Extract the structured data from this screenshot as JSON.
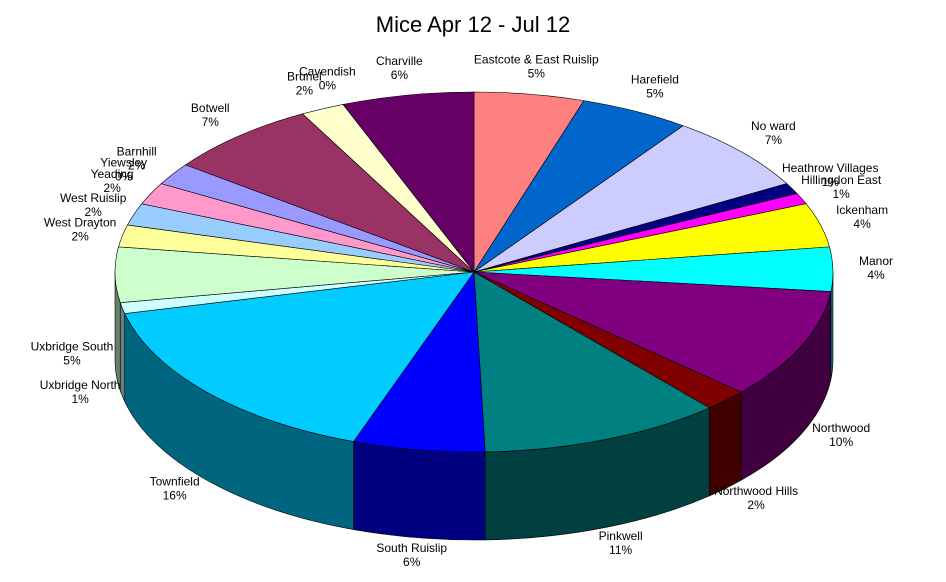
{
  "chart_data": {
    "type": "pie3d",
    "title": "Mice Apr 12 - Jul 12",
    "categories": [
      "Eastcote & East Ruislip",
      "Harefield",
      "No ward",
      "Heathrow Villages",
      "Hillingdon East",
      "Ickenham",
      "Manor",
      "Northwood",
      "Northwood Hills",
      "Pinkwell",
      "South Ruislip",
      "Townfield",
      "Uxbridge North",
      "Uxbridge South",
      "West Drayton",
      "West Ruislip",
      "Yeading",
      "Yiewsley",
      "Barnhill",
      "Botwell",
      "Brunel",
      "Cavendish",
      "Charville"
    ],
    "values": [
      5,
      5,
      7,
      1,
      1,
      4,
      4,
      10,
      2,
      11,
      6,
      16,
      1,
      5,
      2,
      2,
      2,
      0,
      2,
      7,
      2,
      0,
      6
    ],
    "value_labels": [
      "5%",
      "5%",
      "7%",
      "1%",
      "1%",
      "4%",
      "4%",
      "10%",
      "2%",
      "11%",
      "6%",
      "16%",
      "1%",
      "5%",
      "2%",
      "2%",
      "2%",
      "0%",
      "2%",
      "7%",
      "2%",
      "0%",
      "6%"
    ],
    "colors": [
      "#ff8080",
      "#0066cc",
      "#ccccff",
      "#000080",
      "#ff00ff",
      "#ffff00",
      "#00ffff",
      "#800080",
      "#800000",
      "#008080",
      "#0000ff",
      "#00ccff",
      "#ccffff",
      "#ccffcc",
      "#ffff99",
      "#99ccff",
      "#ff99cc",
      "#cc99ff",
      "#9999ff",
      "#993366",
      "#ffffcc",
      "#ccffff",
      "#660066"
    ]
  }
}
